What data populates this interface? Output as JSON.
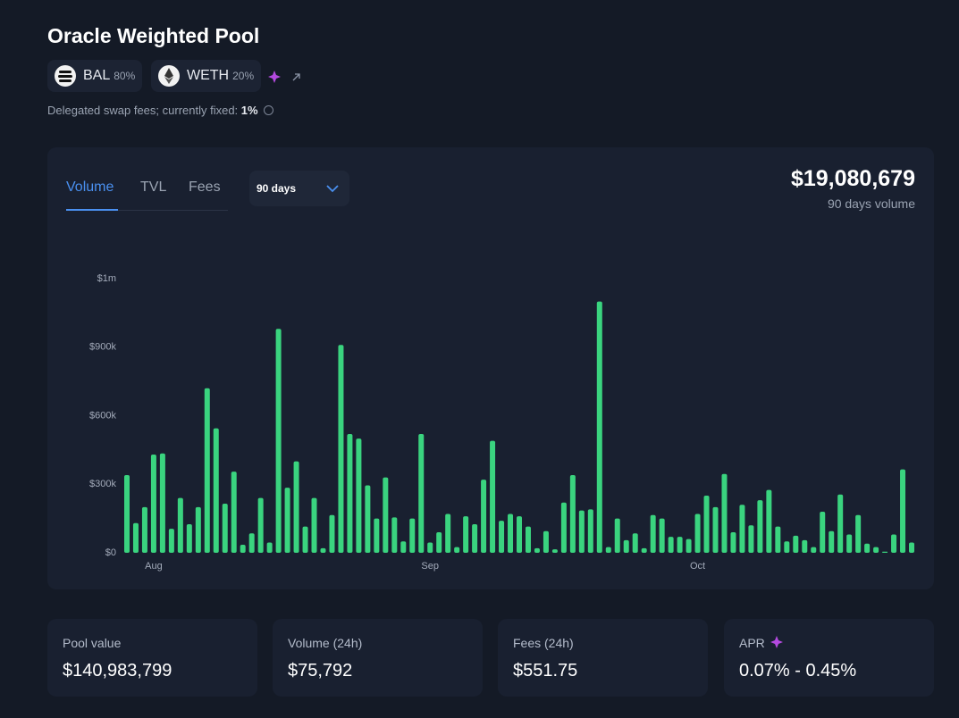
{
  "header": {
    "title": "Oracle Weighted Pool",
    "tokens": [
      {
        "symbol": "BAL",
        "weight": "80%"
      },
      {
        "symbol": "WETH",
        "weight": "20%"
      }
    ],
    "fee_note": "Delegated swap fees; currently fixed:",
    "fee_value": "1%"
  },
  "tabs": [
    "Volume",
    "TVL",
    "Fees"
  ],
  "period": "90 days",
  "total": "$19,080,679",
  "total_label": "90 days volume",
  "chart_data": {
    "type": "bar",
    "color": "#3ad47f",
    "grid": false,
    "categories": [
      null,
      null,
      null,
      "Aug",
      null,
      null,
      null,
      null,
      null,
      null,
      null,
      null,
      null,
      null,
      null,
      null,
      null,
      null,
      null,
      null,
      null,
      null,
      null,
      null,
      null,
      null,
      null,
      null,
      null,
      null,
      null,
      null,
      null,
      null,
      "Sep",
      null,
      null,
      null,
      null,
      null,
      null,
      null,
      null,
      null,
      null,
      null,
      null,
      null,
      null,
      null,
      null,
      null,
      null,
      null,
      null,
      null,
      null,
      null,
      null,
      null,
      null,
      null,
      null,
      null,
      "Oct",
      null,
      null,
      null,
      null,
      null,
      null,
      null,
      null,
      null,
      null,
      null,
      null,
      null,
      null,
      null,
      null,
      null,
      null,
      null,
      null,
      null,
      null,
      null,
      null
    ],
    "values": [
      340000,
      130000,
      200000,
      430000,
      435000,
      105000,
      240000,
      125000,
      200000,
      720000,
      545000,
      215000,
      355000,
      35000,
      85000,
      240000,
      45000,
      980000,
      285000,
      400000,
      115000,
      240000,
      20000,
      165000,
      910000,
      520000,
      500000,
      295000,
      150000,
      330000,
      155000,
      50000,
      150000,
      520000,
      45000,
      90000,
      170000,
      25000,
      160000,
      125000,
      320000,
      490000,
      140000,
      170000,
      160000,
      115000,
      20000,
      95000,
      15000,
      220000,
      340000,
      185000,
      190000,
      1100000,
      25000,
      150000,
      55000,
      85000,
      20000,
      165000,
      150000,
      70000,
      70000,
      60000,
      170000,
      250000,
      200000,
      345000,
      90000,
      210000,
      120000,
      230000,
      275000,
      115000,
      50000,
      75000,
      55000,
      25000,
      180000,
      95000,
      255000,
      80000,
      165000,
      40000,
      25000,
      5000,
      80000,
      365000,
      45000
    ],
    "ylim": [
      0,
      1200000
    ],
    "yticks": [
      {
        "value": 0,
        "label": "$0"
      },
      {
        "value": 300000,
        "label": "$300k"
      },
      {
        "value": 600000,
        "label": "$600k"
      },
      {
        "value": 900000,
        "label": "$900k"
      },
      {
        "value": 1200000,
        "label": "$1m"
      }
    ]
  },
  "stats": [
    {
      "label": "Pool value",
      "value": "$140,983,799"
    },
    {
      "label": "Volume (24h)",
      "value": "$75,792"
    },
    {
      "label": "Fees (24h)",
      "value": "$551.75"
    },
    {
      "label": "APR",
      "value": "0.07% - 0.45%"
    }
  ]
}
